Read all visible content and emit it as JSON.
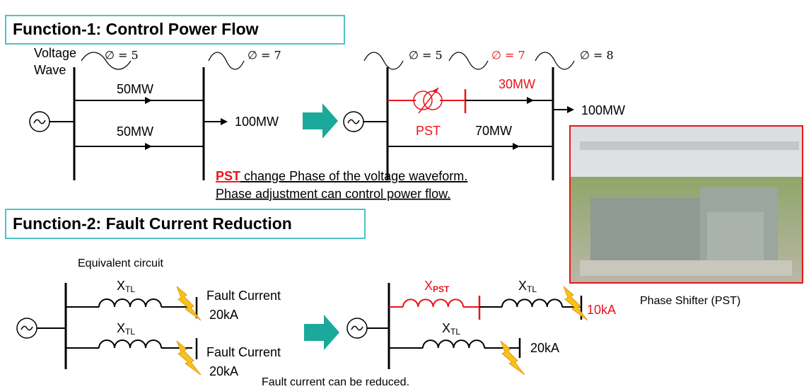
{
  "function1": {
    "title": "Function-1: Control Power Flow",
    "voltage_label": [
      "Voltage",
      "Wave"
    ],
    "before": {
      "phases": [
        "∅ = 5",
        "∅ = 7"
      ],
      "flows": [
        "50MW",
        "50MW"
      ],
      "output": "100MW"
    },
    "after": {
      "phases": [
        "∅ = 5",
        "∅ = 7",
        "∅ = 8"
      ],
      "flows": [
        "30MW",
        "70MW"
      ],
      "output": "100MW",
      "device": "PST"
    },
    "note": {
      "keyword": "PST",
      "line1": " change Phase of the voltage waveform.",
      "line2": "Phase adjustment can control power flow."
    }
  },
  "function2": {
    "title": "Function-2: Fault Current Reduction",
    "subtitle": "Equivalent circuit",
    "before": {
      "reactances": [
        {
          "symbol": "X",
          "subscript": "TL"
        },
        {
          "symbol": "X",
          "subscript": "TL"
        }
      ],
      "faults": [
        {
          "label": "Fault Current",
          "current": "20kA"
        },
        {
          "label": "Fault Current",
          "current": "20kA"
        }
      ]
    },
    "after": {
      "reactances": [
        {
          "symbol": "X",
          "subscript": "PST"
        },
        {
          "symbol": "X",
          "subscript": "TL"
        },
        {
          "symbol": "X",
          "subscript": "TL"
        }
      ],
      "currents": [
        "10kA",
        "20kA"
      ]
    },
    "note": "Fault current can be reduced."
  },
  "photo": {
    "caption": "Phase Shifter (PST)"
  }
}
